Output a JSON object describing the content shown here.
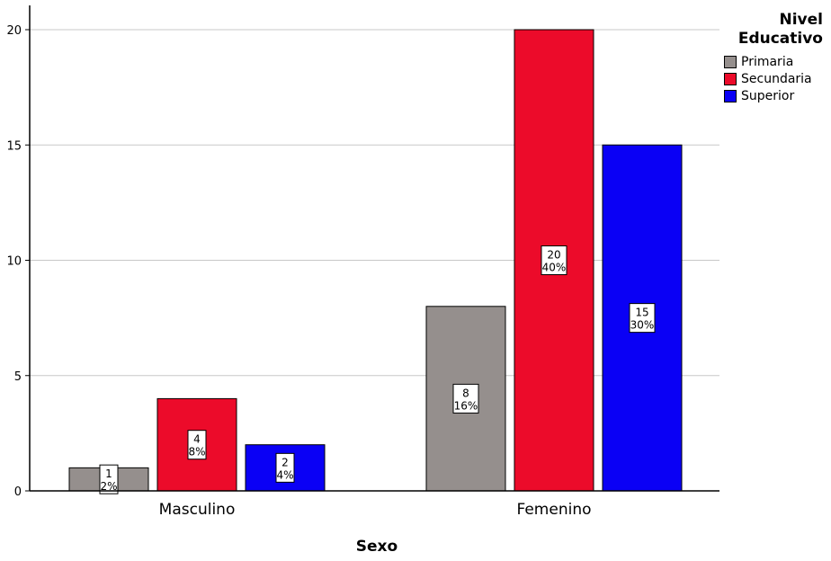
{
  "chart_data": {
    "type": "bar",
    "title": "",
    "xlabel": "Sexo",
    "ylabel": "",
    "ylim": [
      0,
      21
    ],
    "yticks": [
      "0",
      "5",
      "10",
      "15",
      "20"
    ],
    "grid": true,
    "legend_position": "top-right",
    "legend_title": "Nivel Educativo",
    "categories": [
      "Masculino",
      "Femenino"
    ],
    "series": [
      {
        "name": "Primaria",
        "color": "#958f8d",
        "values": [
          1,
          8
        ],
        "labels": [
          [
            "1",
            "2%"
          ],
          [
            "8",
            "16%"
          ]
        ]
      },
      {
        "name": "Secundaria",
        "color": "#ec0b2a",
        "values": [
          4,
          20
        ],
        "labels": [
          [
            "4",
            "8%"
          ],
          [
            "20",
            "40%"
          ]
        ]
      },
      {
        "name": "Superior",
        "color": "#0a00f5",
        "values": [
          2,
          15
        ],
        "labels": [
          [
            "2",
            "4%"
          ],
          [
            "15",
            "30%"
          ]
        ]
      }
    ]
  }
}
